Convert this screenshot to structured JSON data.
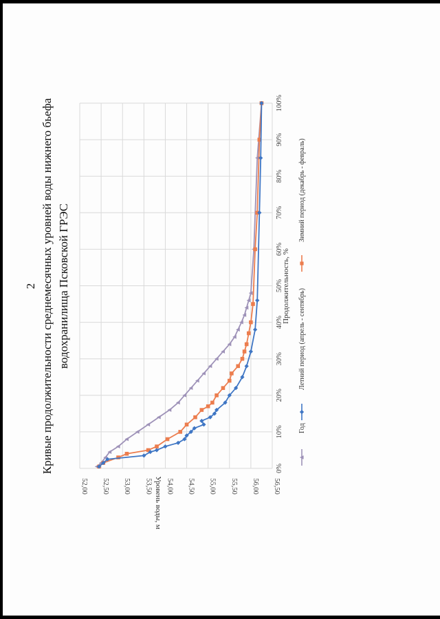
{
  "page_number": "2",
  "colors": {
    "summer": "#3f76c4",
    "winter": "#ec7d4e",
    "year": "#9e92b8",
    "grid": "#d9d9d9"
  },
  "chart_data": {
    "type": "line",
    "title_line1": "Кривые продолжительности среднемесячных уровней воды нижнего бьефа",
    "title_line2": "водохранилища Псковской ГРЭС",
    "xlabel": "Продолжительность, %",
    "ylabel": "Уровень воды, м",
    "xlim": [
      0,
      100
    ],
    "ylim": [
      52.0,
      56.5
    ],
    "xticks": [
      "0%",
      "10%",
      "20%",
      "30%",
      "40%",
      "50%",
      "60%",
      "70%",
      "80%",
      "90%",
      "100%"
    ],
    "yticks": [
      "52,00",
      "52,50",
      "53,00",
      "53,50",
      "54,00",
      "54,50",
      "55,00",
      "55,50",
      "56,00",
      "56,50"
    ],
    "grid": true,
    "legend_position": "bottom",
    "series": [
      {
        "name": "Летний период (апрель - сентябрь)",
        "key": "summer",
        "marker": "diamond",
        "x": [
          0.5,
          1.5,
          2.5,
          3.5,
          4.5,
          5,
          6,
          7,
          8,
          9,
          10,
          11,
          12,
          13,
          14,
          15,
          16,
          18,
          20,
          22,
          25,
          28,
          32,
          38,
          46,
          70,
          85,
          100
        ],
        "y": [
          56.05,
          55.95,
          55.85,
          55.0,
          54.85,
          54.7,
          54.5,
          54.2,
          54.05,
          54.0,
          53.9,
          53.82,
          53.6,
          53.65,
          53.45,
          53.35,
          53.3,
          53.1,
          53.0,
          52.85,
          52.7,
          52.6,
          52.5,
          52.4,
          52.35,
          52.3,
          52.27,
          52.25
        ]
      },
      {
        "name": "Зимний период (декабрь - февраль)",
        "key": "winter",
        "marker": "square",
        "x": [
          0.5,
          1.5,
          3,
          4,
          5,
          6,
          8,
          10,
          12,
          14,
          16,
          17,
          18,
          20,
          22,
          24,
          26,
          28,
          30,
          32,
          34,
          37,
          40,
          45,
          60,
          70,
          90,
          100
        ],
        "y": [
          56.05,
          55.95,
          55.6,
          55.4,
          54.9,
          54.7,
          54.45,
          54.15,
          54.0,
          53.8,
          53.65,
          53.5,
          53.4,
          53.3,
          53.15,
          53.0,
          52.95,
          52.8,
          52.7,
          52.65,
          52.6,
          52.55,
          52.5,
          52.45,
          52.4,
          52.35,
          52.3,
          52.25
        ]
      },
      {
        "name": "Год",
        "key": "year",
        "marker": "triangle",
        "x": [
          0.5,
          1.5,
          3,
          4.5,
          6,
          8,
          10,
          12,
          14,
          16,
          18,
          20,
          22,
          24,
          26,
          28,
          30,
          32,
          34,
          36,
          38,
          40,
          42,
          44,
          46,
          48,
          60,
          85,
          100
        ],
        "y": [
          56.1,
          56.0,
          55.9,
          55.8,
          55.6,
          55.4,
          55.15,
          54.9,
          54.65,
          54.4,
          54.2,
          54.05,
          53.9,
          53.75,
          53.6,
          53.45,
          53.3,
          53.15,
          53.0,
          52.88,
          52.8,
          52.72,
          52.65,
          52.6,
          52.55,
          52.5,
          52.43,
          52.35,
          52.25
        ]
      }
    ]
  }
}
